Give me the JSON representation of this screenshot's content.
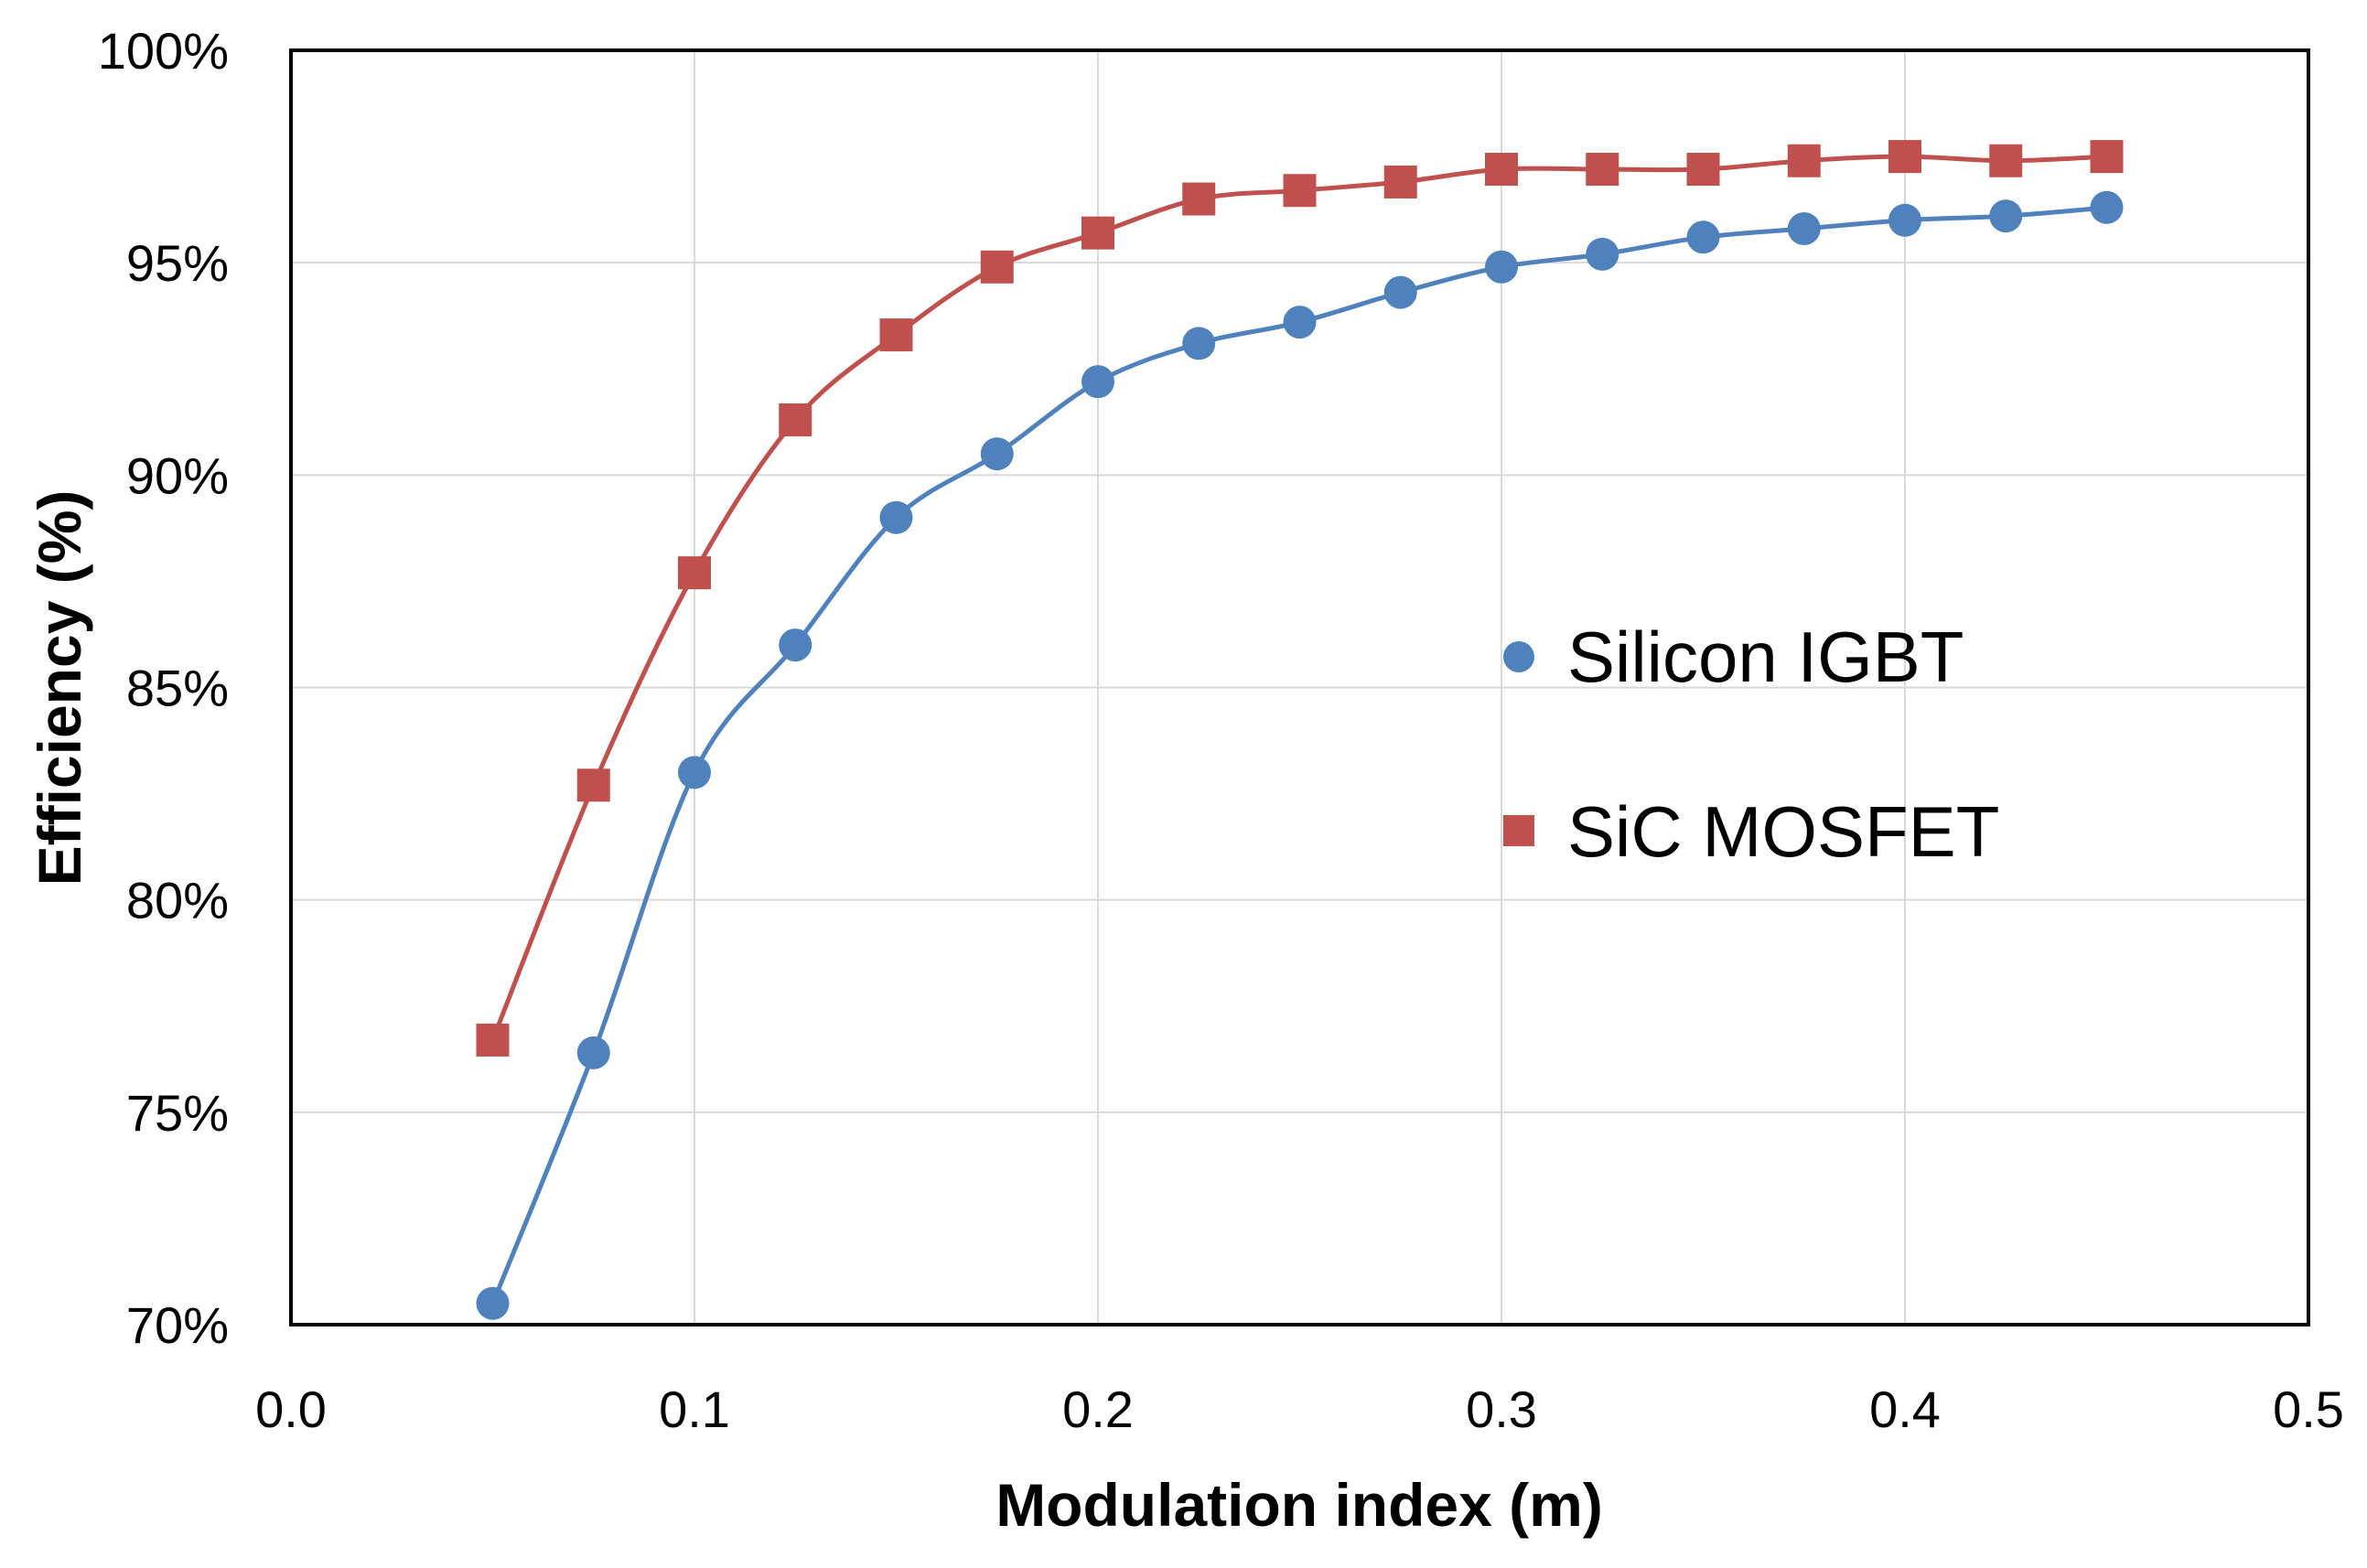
{
  "chart_data": {
    "type": "scatter",
    "title": "",
    "xlabel": "Modulation index (m)",
    "ylabel": "Efficiency (%)",
    "xlim": [
      0.0,
      0.5
    ],
    "ylim": [
      70,
      100
    ],
    "x_ticks": [
      0.0,
      0.1,
      0.2,
      0.3,
      0.4,
      0.5
    ],
    "x_tick_labels": [
      "0.0",
      "0.1",
      "0.2",
      "0.3",
      "0.4",
      "0.5"
    ],
    "y_ticks": [
      70,
      75,
      80,
      85,
      90,
      95,
      100
    ],
    "y_tick_labels": [
      "70%",
      "75%",
      "80%",
      "85%",
      "90%",
      "95%",
      "100%"
    ],
    "grid": true,
    "legend_position": "center-right",
    "trendlines": "smooth",
    "series": [
      {
        "name": "Silicon IGBT",
        "marker": "circle",
        "color": "#4F81BD",
        "x": [
          0.05,
          0.075,
          0.1,
          0.125,
          0.15,
          0.175,
          0.2,
          0.225,
          0.25,
          0.275,
          0.3,
          0.325,
          0.35,
          0.375,
          0.4,
          0.425,
          0.45
        ],
        "y": [
          70.5,
          76.4,
          83.0,
          86.0,
          89.0,
          90.5,
          92.2,
          93.1,
          93.6,
          94.3,
          94.9,
          95.2,
          95.6,
          95.8,
          96.0,
          96.1,
          96.3
        ]
      },
      {
        "name": "SiC MOSFET",
        "marker": "square",
        "color": "#C0504D",
        "x": [
          0.05,
          0.075,
          0.1,
          0.125,
          0.15,
          0.175,
          0.2,
          0.225,
          0.25,
          0.275,
          0.3,
          0.325,
          0.35,
          0.375,
          0.4,
          0.425,
          0.45
        ],
        "y": [
          76.7,
          82.7,
          87.7,
          91.3,
          93.3,
          94.9,
          95.7,
          96.5,
          96.7,
          96.9,
          97.2,
          97.2,
          97.2,
          97.4,
          97.5,
          97.4,
          97.5
        ]
      }
    ]
  }
}
